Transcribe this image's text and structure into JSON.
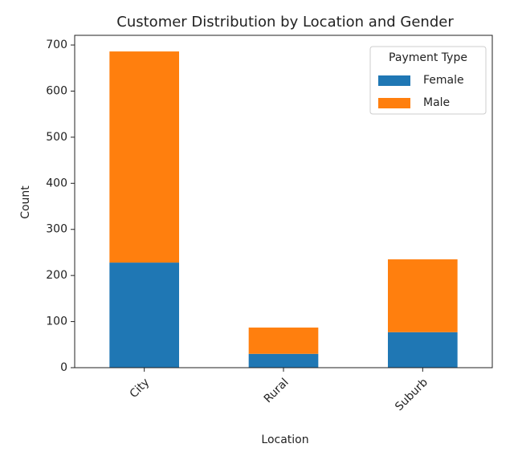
{
  "chart_data": {
    "type": "stacked_bar",
    "title": "Customer Distribution by Location and Gender",
    "x_label": "Location",
    "y_label": "Count",
    "categories": [
      "City",
      "Rural",
      "Suburb"
    ],
    "series": [
      {
        "name": "Female",
        "color": "#1f77b4",
        "values": [
          228,
          30,
          77
        ]
      },
      {
        "name": "Male",
        "color": "#ff7f0e",
        "values": [
          458,
          57,
          158
        ]
      }
    ],
    "ylim": [
      0,
      721
    ],
    "yticks": [
      0,
      100,
      200,
      300,
      400,
      500,
      600,
      700
    ],
    "legend_title": "Payment Type",
    "legend_position": "upper right"
  }
}
